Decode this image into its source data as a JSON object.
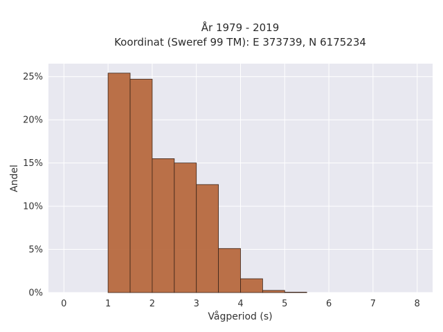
{
  "chart_data": {
    "type": "bar",
    "title": "År 1979 - 2019",
    "subtitle": "Koordinat (Sweref 99 TM): E 373739, N 6175234",
    "xlabel": "Vågperiod (s)",
    "ylabel": "Andel",
    "x_ticks": [
      "0",
      "1",
      "2",
      "3",
      "4",
      "5",
      "6",
      "7",
      "8"
    ],
    "y_ticks": [
      "0%",
      "5%",
      "10%",
      "15%",
      "20%",
      "25%"
    ],
    "xlim": [
      -0.35,
      8.35
    ],
    "ylim": [
      0,
      26.5
    ],
    "bin_edges": [
      1.0,
      1.5,
      2.0,
      2.5,
      3.0,
      3.5,
      4.0,
      4.5,
      5.0,
      5.5
    ],
    "values": [
      25.4,
      24.7,
      15.5,
      15.0,
      12.5,
      5.1,
      1.6,
      0.25,
      0.05
    ],
    "bar_color": "#b5653a",
    "bar_edge_color": "#3a2418",
    "plot_background": "#e8e8f0",
    "grid": true
  }
}
